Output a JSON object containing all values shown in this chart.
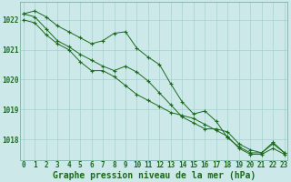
{
  "title": "Graphe pression niveau de la mer (hPa)",
  "background_color": "#cce8e8",
  "plot_bg_color": "#cce8e8",
  "grid_color": "#99cccc",
  "line_color": "#1a6b1a",
  "marker_color": "#1a6b1a",
  "hours": [
    0,
    1,
    2,
    3,
    4,
    5,
    6,
    7,
    8,
    9,
    10,
    11,
    12,
    13,
    14,
    15,
    16,
    17,
    18,
    19,
    20,
    21,
    22,
    23
  ],
  "series": [
    [
      1022.2,
      1022.3,
      1022.1,
      1021.8,
      1021.6,
      1021.4,
      1021.2,
      1021.3,
      1021.55,
      1021.6,
      1021.05,
      1020.75,
      1020.5,
      1019.85,
      1019.25,
      1018.85,
      1018.95,
      1018.6,
      1018.05,
      1017.75,
      1017.55,
      1017.55,
      1017.9,
      1017.55
    ],
    [
      1022.2,
      1022.1,
      1021.7,
      1021.3,
      1021.1,
      1020.85,
      1020.65,
      1020.45,
      1020.3,
      1020.45,
      1020.25,
      1019.95,
      1019.55,
      1019.15,
      1018.75,
      1018.55,
      1018.35,
      1018.35,
      1018.25,
      1017.85,
      1017.65,
      1017.55,
      1017.85,
      1017.55
    ],
    [
      1022.0,
      1021.9,
      1021.5,
      1021.2,
      1021.0,
      1020.6,
      1020.3,
      1020.3,
      1020.1,
      1019.8,
      1019.5,
      1019.3,
      1019.1,
      1018.9,
      1018.8,
      1018.7,
      1018.5,
      1018.3,
      1018.1,
      1017.7,
      1017.5,
      1017.5,
      1017.7,
      1017.5
    ]
  ],
  "ylim": [
    1017.3,
    1022.6
  ],
  "yticks": [
    1018,
    1019,
    1020,
    1021,
    1022
  ],
  "tick_fontsize": 5.5,
  "title_fontsize": 7.0
}
